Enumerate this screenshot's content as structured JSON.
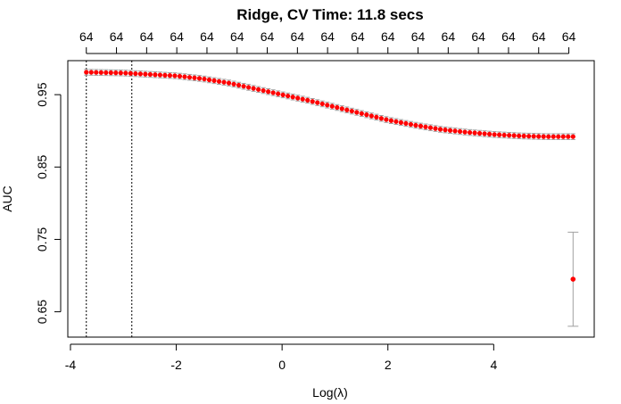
{
  "chart_data": {
    "type": "scatter",
    "title": "Ridge,  CV Time:  11.8 secs",
    "xlabel": "Log(λ)",
    "ylabel": "AUC",
    "xlim": [
      -4.05,
      5.9
    ],
    "ylim": [
      0.615,
      0.997
    ],
    "x_ticks": [
      -4,
      -2,
      0,
      2,
      4
    ],
    "x_tick_labels": [
      "-4",
      "-2",
      "0",
      "2",
      "4"
    ],
    "y_ticks": [
      0.65,
      0.75,
      0.85,
      0.95
    ],
    "y_tick_labels": [
      "0.65",
      "0.75",
      "0.85",
      "0.95"
    ],
    "top_axis": {
      "positions": [
        -3.7,
        -3.13,
        -2.56,
        -1.99,
        -1.42,
        -0.85,
        -0.28,
        0.29,
        0.86,
        1.43,
        2.0,
        2.57,
        3.14,
        3.71,
        4.28,
        4.85,
        5.42
      ],
      "labels": [
        "64",
        "64",
        "64",
        "64",
        "64",
        "64",
        "64",
        "64",
        "64",
        "64",
        "64",
        "64",
        "64",
        "64",
        "64",
        "64",
        "64"
      ]
    },
    "vlines": [
      -3.7,
      -2.84
    ],
    "series": [
      {
        "style": "points-with-errorbars",
        "color": "#ff0000",
        "error_color": "#a0a0a0",
        "x_range": [
          -3.7,
          5.5
        ],
        "n_points": 100,
        "curve_knots": {
          "x": [
            -3.7,
            -3.0,
            -2.5,
            -2.0,
            -1.5,
            -1.0,
            -0.5,
            0.0,
            0.5,
            1.0,
            1.5,
            2.0,
            2.5,
            3.0,
            3.5,
            4.0,
            4.5,
            5.0,
            5.5
          ],
          "y": [
            0.981,
            0.98,
            0.978,
            0.976,
            0.972,
            0.966,
            0.958,
            0.95,
            0.942,
            0.933,
            0.924,
            0.915,
            0.908,
            0.902,
            0.898,
            0.895,
            0.893,
            0.892,
            0.892
          ]
        },
        "error_halfwidth": 0.004
      },
      {
        "style": "single-point-with-errorbar",
        "color": "#ff0000",
        "error_color": "#a0a0a0",
        "x": 5.5,
        "y": 0.695,
        "lower": 0.63,
        "upper": 0.76
      }
    ]
  }
}
